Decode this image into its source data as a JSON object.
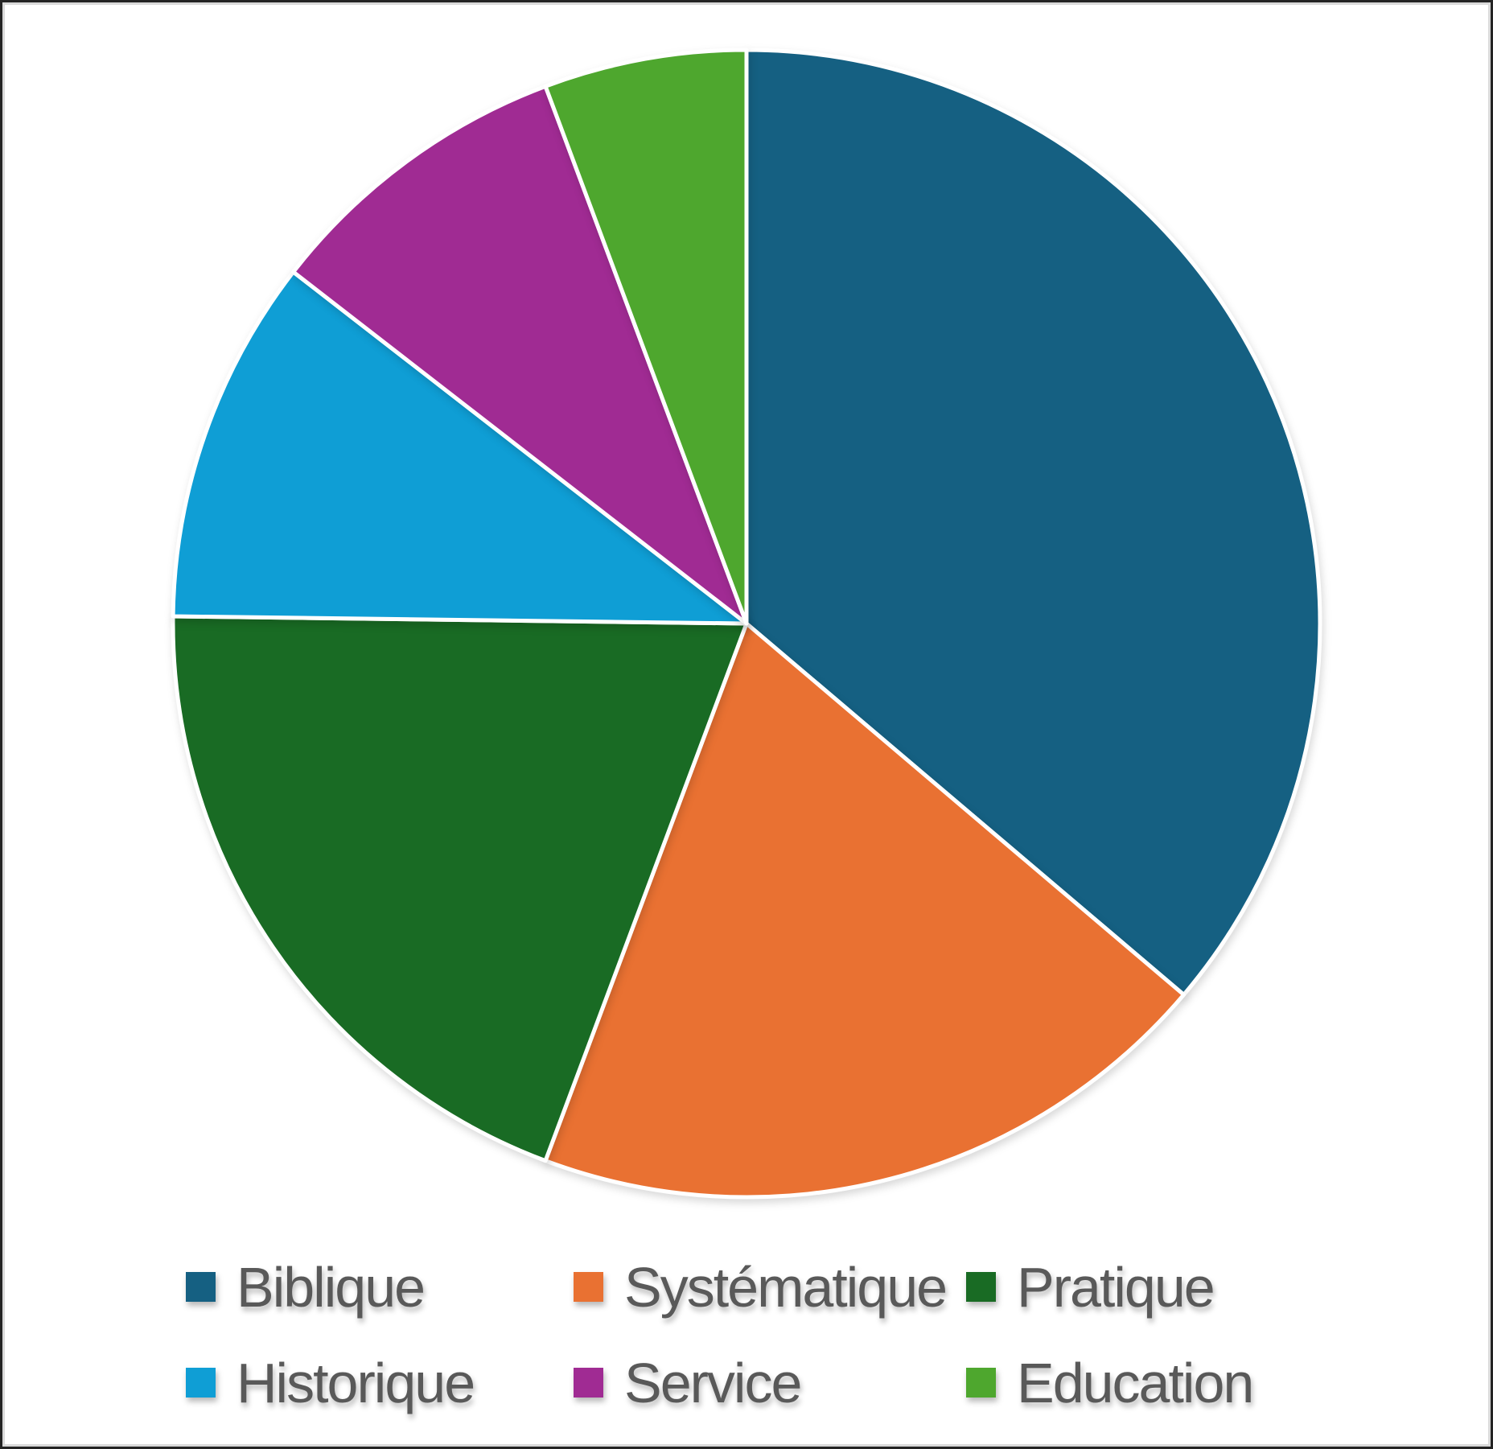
{
  "chart_data": {
    "type": "pie",
    "title": "",
    "categories": [
      "Biblique",
      "Systématique",
      "Pratique",
      "Historique",
      "Service",
      "Education"
    ],
    "values": [
      36.2,
      19.5,
      19.5,
      10.3,
      8.8,
      5.7
    ],
    "unit": "percent_of_total",
    "colors": [
      "#156082",
      "#E97132",
      "#196B24",
      "#0F9ED5",
      "#A02B93",
      "#4EA72E"
    ],
    "start_angle_deg": 0,
    "direction": "clockwise",
    "slice_separator_color": "#FFFFFF",
    "background_color": "#FFFFFF",
    "legend": {
      "position": "bottom",
      "rows": 2,
      "columns": 3,
      "marker_shape": "square",
      "text_color": "#595959",
      "items": [
        "Biblique",
        "Systématique",
        "Pratique",
        "Historique",
        "Service",
        "Education"
      ]
    }
  }
}
